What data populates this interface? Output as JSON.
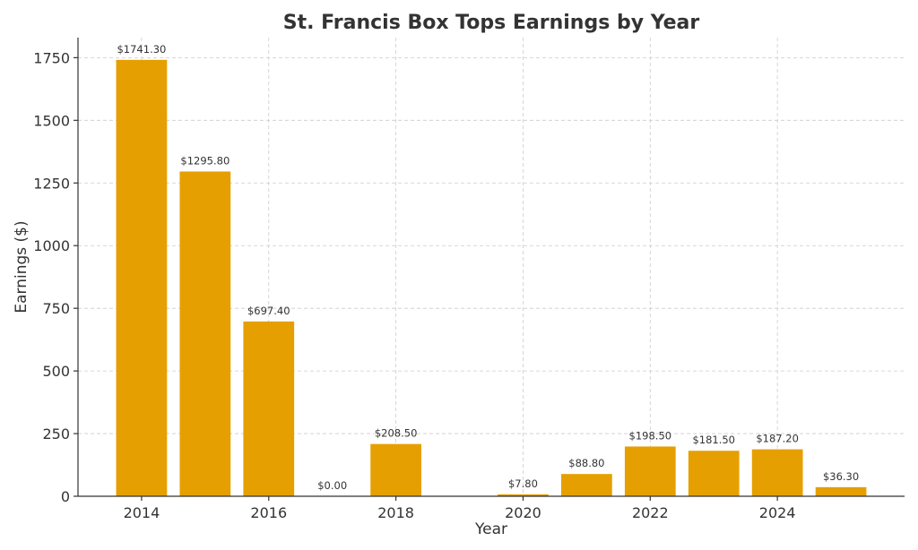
{
  "chart_data": {
    "type": "bar",
    "title": "St. Francis Box Tops Earnings by Year",
    "xlabel": "Year",
    "ylabel": "Earnings ($)",
    "x": [
      2014,
      2015,
      2016,
      2017,
      2018,
      2019,
      2020,
      2021,
      2022,
      2023,
      2024,
      2025
    ],
    "values": [
      1741.3,
      1295.8,
      697.4,
      0.0,
      208.5,
      null,
      7.8,
      88.8,
      198.5,
      181.5,
      187.2,
      36.3
    ],
    "data_labels": [
      "$1741.30",
      "$1295.80",
      "$697.40",
      "$0.00",
      "$208.50",
      "",
      "$7.80",
      "$88.80",
      "$198.50",
      "$181.50",
      "$187.20",
      "$36.30"
    ],
    "xlim": [
      2013.0,
      2026.0
    ],
    "ylim": [
      0,
      1830
    ],
    "xticks": [
      2014,
      2016,
      2018,
      2020,
      2022,
      2024
    ],
    "yticks": [
      0,
      250,
      500,
      750,
      1000,
      1250,
      1500,
      1750
    ],
    "grid": true,
    "bar_color": "#E69F00"
  }
}
